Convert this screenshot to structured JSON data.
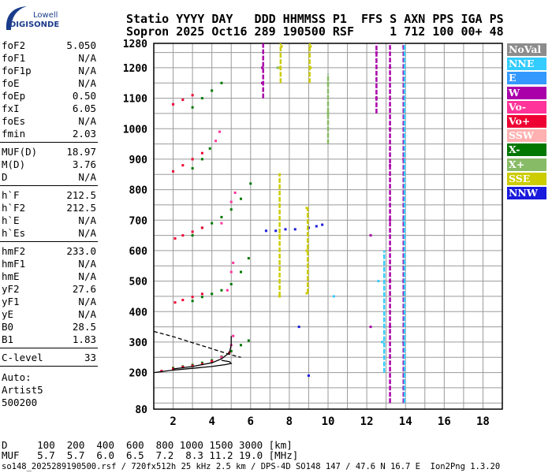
{
  "logo": {
    "top": "Lowell",
    "main": "DIGISONDE"
  },
  "header": {
    "line1": "Statio YYYY DAY   DDD HHMMSS P1  FFS S AXN PPS IGA PS",
    "line2": "Sopron 2025 Oct16 289 190500 RSF     1 712 100 00+ 48"
  },
  "params": {
    "group1": [
      {
        "name": "foF2",
        "value": "5.050"
      },
      {
        "name": "foF1",
        "value": "N/A"
      },
      {
        "name": "foF1p",
        "value": "N/A"
      },
      {
        "name": "foE",
        "value": "N/A"
      },
      {
        "name": "foEp",
        "value": "0.50"
      },
      {
        "name": "fxI",
        "value": "6.05"
      },
      {
        "name": "foEs",
        "value": "N/A"
      },
      {
        "name": "fmin",
        "value": "2.03"
      }
    ],
    "group2": [
      {
        "name": "MUF(D)",
        "value": "18.97"
      },
      {
        "name": "M(D)",
        "value": "3.76"
      },
      {
        "name": "D",
        "value": "N/A"
      }
    ],
    "group3": [
      {
        "name": "h`F",
        "value": "212.5"
      },
      {
        "name": "h`F2",
        "value": "212.5"
      },
      {
        "name": "h`E",
        "value": "N/A"
      },
      {
        "name": "h`Es",
        "value": "N/A"
      }
    ],
    "group4": [
      {
        "name": "hmF2",
        "value": "233.0"
      },
      {
        "name": "hmF1",
        "value": "N/A"
      },
      {
        "name": "hmE",
        "value": "N/A"
      },
      {
        "name": "yF2",
        "value": "27.6"
      },
      {
        "name": "yF1",
        "value": "N/A"
      },
      {
        "name": "yE",
        "value": "N/A"
      },
      {
        "name": "B0",
        "value": "28.5"
      },
      {
        "name": "B1",
        "value": "1.83"
      }
    ],
    "clevel": {
      "name": "C-level",
      "value": "33"
    },
    "auto": [
      "Auto:",
      "Artist5",
      "500200"
    ]
  },
  "legend": [
    {
      "label": "NoVal",
      "color": "#8c8c8c"
    },
    {
      "label": "NNE",
      "color": "#33ccff"
    },
    {
      "label": "E",
      "color": "#3399ff"
    },
    {
      "label": "W",
      "color": "#aa00aa"
    },
    {
      "label": "Vo-",
      "color": "#ff3399"
    },
    {
      "label": "Vo+",
      "color": "#ee0033"
    },
    {
      "label": "SSW",
      "color": "#ffb0b0"
    },
    {
      "label": "X-",
      "color": "#007700"
    },
    {
      "label": "X+",
      "color": "#88bb66"
    },
    {
      "label": "SSE",
      "color": "#cccc00"
    },
    {
      "label": "NNW",
      "color": "#1a1add"
    }
  ],
  "bottom": {
    "d_row": "D     100  200  400  600  800 1000 1500 3000 [km]",
    "muf_row": "MUF   5.7  5.7  6.0  6.5  7.2  8.3 11.2 19.0 [MHz]"
  },
  "footer": "so148_2025289190500.rsf / 720fx512h 25 kHz 2.5 km / DPS-4D SO148 147 / 47.6 N 16.7 E  Ion2Png 1.3.20",
  "chart_data": {
    "type": "scatter",
    "xlim": [
      1,
      19
    ],
    "ylim": [
      80,
      1280
    ],
    "x_ticks": [
      2,
      4,
      6,
      8,
      10,
      12,
      14,
      16,
      18
    ],
    "y_ticks": [
      80,
      200,
      300,
      400,
      500,
      600,
      700,
      800,
      900,
      1000,
      1100,
      1200,
      1280
    ],
    "grid": true,
    "series": [
      {
        "name": "X-",
        "color": "#007700",
        "points": [
          [
            2.0,
            215
          ],
          [
            2.5,
            220
          ],
          [
            3.0,
            225
          ],
          [
            3.5,
            232
          ],
          [
            4.0,
            240
          ],
          [
            4.5,
            252
          ],
          [
            5.0,
            270
          ],
          [
            5.5,
            290
          ],
          [
            5.9,
            305
          ],
          [
            3.0,
            435
          ],
          [
            3.5,
            448
          ],
          [
            4.0,
            458
          ],
          [
            4.5,
            470
          ],
          [
            5.0,
            490
          ],
          [
            5.5,
            530
          ],
          [
            5.9,
            575
          ],
          [
            3.0,
            650
          ],
          [
            3.5,
            675
          ],
          [
            4.0,
            690
          ],
          [
            4.5,
            710
          ],
          [
            5.0,
            735
          ],
          [
            5.5,
            770
          ],
          [
            6.0,
            820
          ],
          [
            3.0,
            870
          ],
          [
            3.5,
            900
          ],
          [
            3.9,
            935
          ],
          [
            3.0,
            1070
          ],
          [
            3.5,
            1100
          ],
          [
            4.0,
            1125
          ],
          [
            4.5,
            1150
          ]
        ]
      },
      {
        "name": "Vo+",
        "color": "#ee0033",
        "points": [
          [
            1.4,
            205
          ],
          [
            2.0,
            212
          ],
          [
            2.5,
            218
          ],
          [
            3.0,
            222
          ],
          [
            3.5,
            228
          ],
          [
            4.0,
            237
          ],
          [
            4.5,
            250
          ],
          [
            4.9,
            265
          ],
          [
            2.1,
            430
          ],
          [
            2.5,
            438
          ],
          [
            3.0,
            448
          ],
          [
            3.5,
            458
          ],
          [
            2.1,
            640
          ],
          [
            2.5,
            650
          ],
          [
            3.0,
            662
          ],
          [
            3.5,
            675
          ],
          [
            2.0,
            860
          ],
          [
            2.5,
            880
          ],
          [
            3.0,
            900
          ],
          [
            3.5,
            920
          ],
          [
            2.0,
            1080
          ],
          [
            2.5,
            1095
          ],
          [
            3.0,
            1110
          ]
        ]
      },
      {
        "name": "Vo-",
        "color": "#ff3399",
        "points": [
          [
            4.5,
            250
          ],
          [
            5.0,
            290
          ],
          [
            5.1,
            320
          ],
          [
            4.8,
            470
          ],
          [
            5.0,
            530
          ],
          [
            5.1,
            560
          ],
          [
            4.5,
            690
          ],
          [
            5.0,
            760
          ],
          [
            5.2,
            790
          ],
          [
            4.2,
            960
          ],
          [
            4.4,
            990
          ]
        ]
      },
      {
        "name": "W",
        "color": "#aa00aa",
        "points": [
          [
            6.6,
            1150
          ],
          [
            6.6,
            1200
          ],
          [
            12.5,
            1100
          ],
          [
            12.5,
            1250
          ],
          [
            13.2,
            880
          ],
          [
            13.2,
            1000
          ],
          [
            13.2,
            1200
          ],
          [
            13.2,
            350
          ],
          [
            13.2,
            500
          ],
          [
            13.2,
            700
          ],
          [
            13.9,
            900
          ],
          [
            13.9,
            1100
          ],
          [
            13.9,
            1270
          ],
          [
            13.9,
            300
          ],
          [
            13.9,
            500
          ],
          [
            12.2,
            350
          ],
          [
            12.2,
            650
          ]
        ]
      },
      {
        "name": "NNE",
        "color": "#33ccff",
        "points": [
          [
            13.9,
            150
          ],
          [
            13.9,
            300
          ],
          [
            13.9,
            500
          ],
          [
            13.9,
            700
          ],
          [
            12.8,
            300
          ],
          [
            10.3,
            450
          ],
          [
            12.6,
            500
          ]
        ]
      },
      {
        "name": "SSE",
        "color": "#cccc00",
        "points": [
          [
            8.9,
            460
          ],
          [
            8.9,
            600
          ],
          [
            8.9,
            740
          ],
          [
            7.5,
            450
          ],
          [
            7.5,
            650
          ],
          [
            7.5,
            850
          ],
          [
            7.5,
            1200
          ],
          [
            7.6,
            1270
          ],
          [
            9.1,
            1200
          ],
          [
            9.1,
            1270
          ]
        ]
      },
      {
        "name": "NNW",
        "color": "#1a1add",
        "points": [
          [
            6.8,
            665
          ],
          [
            7.3,
            665
          ],
          [
            7.8,
            670
          ],
          [
            8.3,
            670
          ],
          [
            9.0,
            675
          ],
          [
            9.4,
            680
          ],
          [
            9.7,
            685
          ],
          [
            9.0,
            190
          ],
          [
            8.5,
            350
          ]
        ]
      },
      {
        "name": "X+",
        "color": "#88bb66",
        "points": [
          [
            10.0,
            1050
          ],
          [
            10.0,
            1150
          ],
          [
            7.4,
            1200
          ]
        ]
      }
    ],
    "traces": [
      {
        "name": "black-solid",
        "color": "#000",
        "dash": false,
        "points": [
          [
            1.0,
            200
          ],
          [
            2.0,
            208
          ],
          [
            3.0,
            214
          ],
          [
            4.0,
            220
          ],
          [
            4.7,
            226
          ],
          [
            5.0,
            230
          ],
          [
            4.9,
            236
          ],
          [
            4.5,
            240
          ]
        ]
      },
      {
        "name": "black-dashed",
        "color": "#000",
        "dash": true,
        "points": [
          [
            1.0,
            335
          ],
          [
            2.0,
            318
          ],
          [
            3.0,
            298
          ],
          [
            4.0,
            278
          ],
          [
            5.0,
            258
          ],
          [
            5.5,
            250
          ]
        ]
      },
      {
        "name": "black-steep",
        "color": "#000",
        "dash": false,
        "points": [
          [
            2.0,
            212
          ],
          [
            3.0,
            220
          ],
          [
            4.0,
            232
          ],
          [
            4.5,
            245
          ],
          [
            4.9,
            265
          ],
          [
            5.0,
            290
          ],
          [
            5.0,
            320
          ]
        ]
      }
    ]
  }
}
